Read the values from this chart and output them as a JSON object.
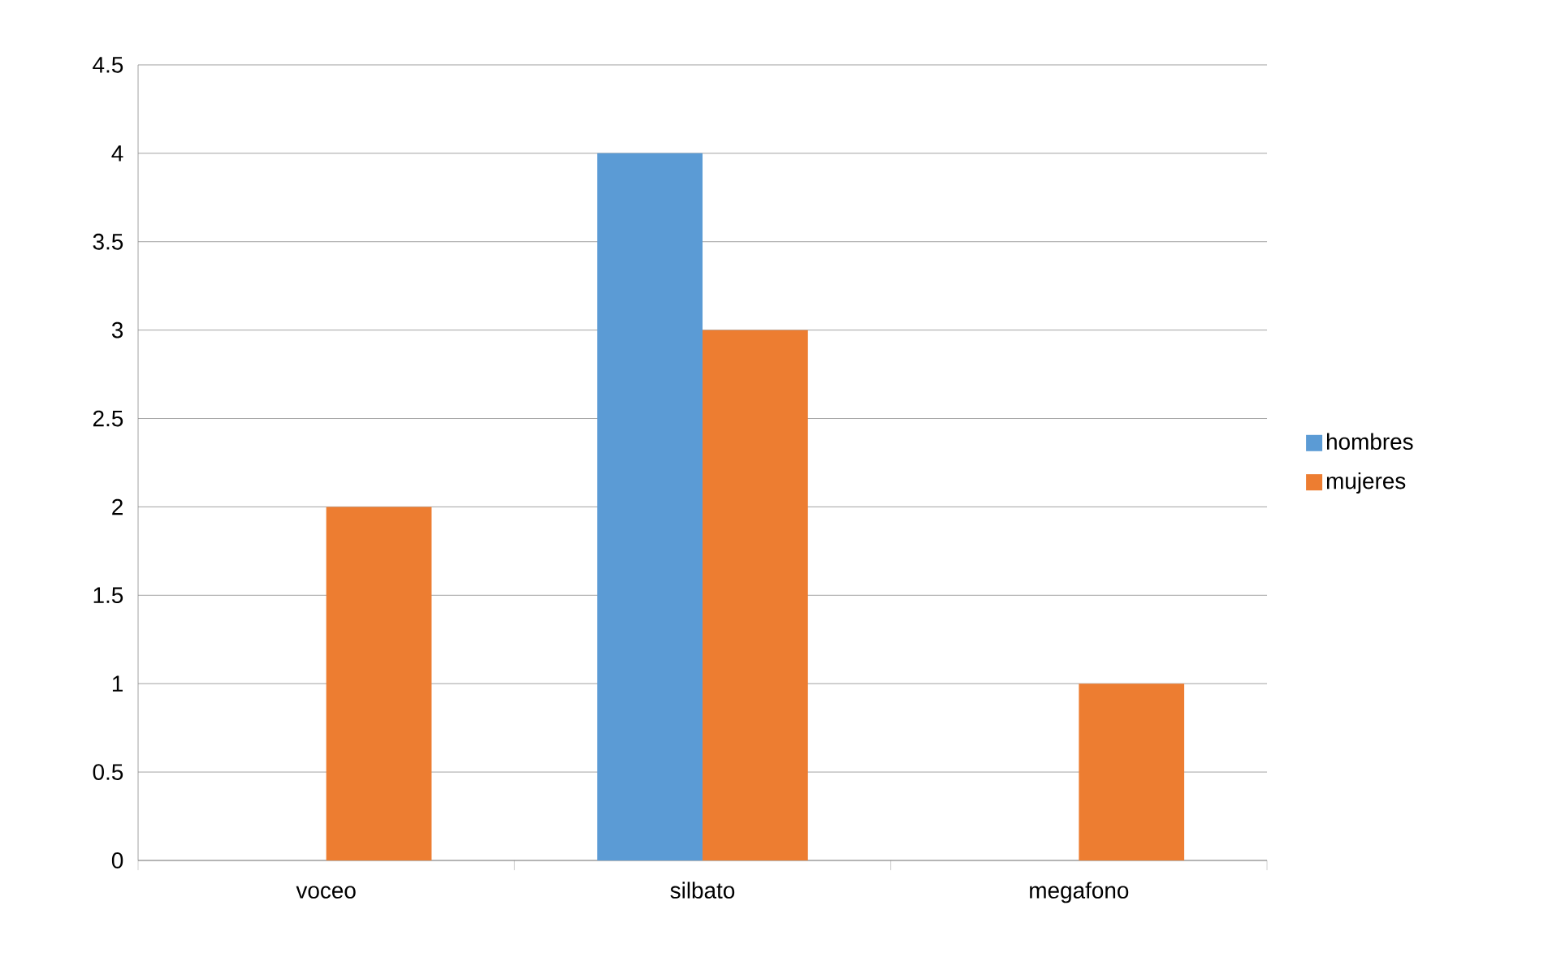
{
  "chart_data": {
    "type": "bar",
    "categories": [
      "voceo",
      "silbato",
      "megafono"
    ],
    "series": [
      {
        "name": "hombres",
        "color": "#5b9bd5",
        "values": [
          0,
          4,
          0
        ]
      },
      {
        "name": "mujeres",
        "color": "#ed7d31",
        "values": [
          2,
          3,
          1
        ]
      }
    ],
    "ylim": [
      0,
      4.5
    ],
    "yticks": [
      0,
      0.5,
      1,
      1.5,
      2,
      2.5,
      3,
      3.5,
      4,
      4.5
    ],
    "grid": "y",
    "legend": "right"
  }
}
